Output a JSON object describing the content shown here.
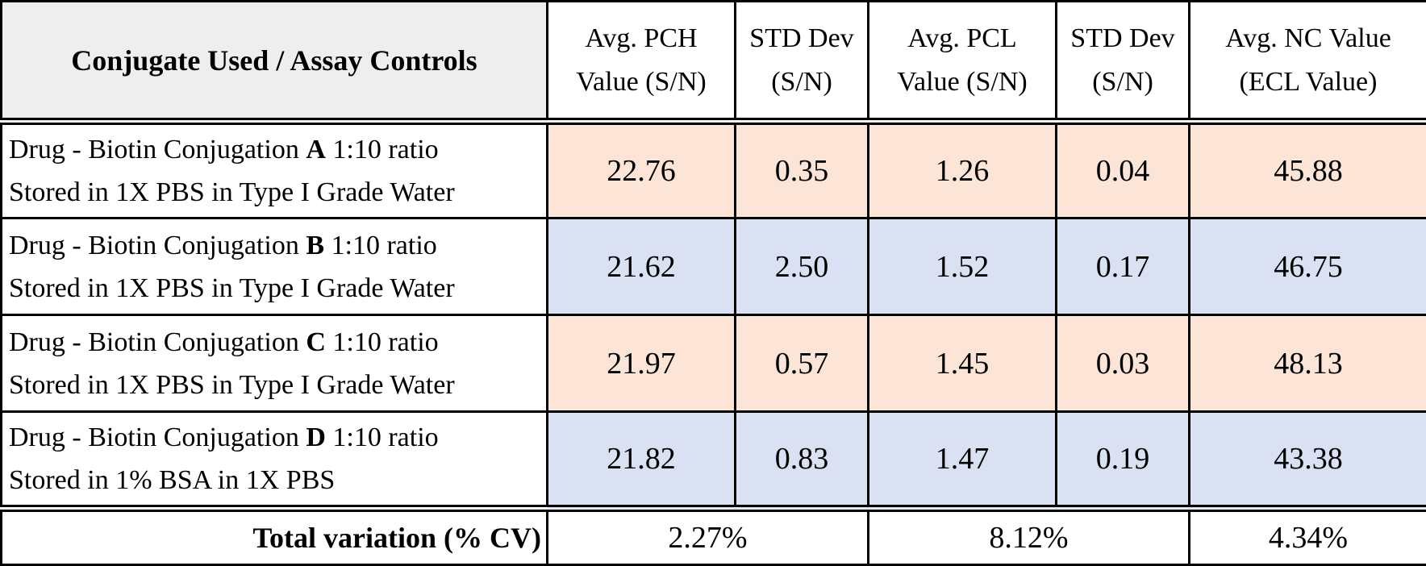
{
  "header": {
    "rowhead": "Conjugate Used / Assay Controls",
    "columns": [
      {
        "line1": "Avg. PCH",
        "line2": "Value (S/N)"
      },
      {
        "line1": "STD Dev",
        "line2": "(S/N)"
      },
      {
        "line1": "Avg. PCL",
        "line2": "Value (S/N)"
      },
      {
        "line1": "STD Dev",
        "line2": "(S/N)"
      },
      {
        "line1": "Avg. NC Value",
        "line2": "(ECL Value)"
      }
    ]
  },
  "rows": [
    {
      "prefix": "Drug - Biotin Conjugation",
      "letter": "A",
      "suffix": "1:10 ratio",
      "line2": "Stored in 1X PBS in Type I Grade Water",
      "values": [
        "22.76",
        "0.35",
        "1.26",
        "0.04",
        "45.88"
      ],
      "shade": "#fce4d6"
    },
    {
      "prefix": "Drug - Biotin Conjugation",
      "letter": "B",
      "suffix": "1:10 ratio",
      "line2": "Stored in 1X PBS in Type I Grade Water",
      "values": [
        "21.62",
        "2.50",
        "1.52",
        "0.17",
        "46.75"
      ],
      "shade": "#dae1f3"
    },
    {
      "prefix": "Drug - Biotin Conjugation",
      "letter": "C",
      "suffix": "1:10 ratio",
      "line2": "Stored in 1X PBS in Type I Grade Water",
      "values": [
        "21.97",
        "0.57",
        "1.45",
        "0.03",
        "48.13"
      ],
      "shade": "#fce4d6"
    },
    {
      "prefix": "Drug - Biotin Conjugation",
      "letter": "D",
      "suffix": "1:10 ratio",
      "line2": "Stored in 1% BSA in 1X PBS",
      "values": [
        "21.82",
        "0.83",
        "1.47",
        "0.19",
        "43.38"
      ],
      "shade": "#dae1f3"
    }
  ],
  "footer": {
    "label": "Total variation (% CV)",
    "pch_cv": "2.27%",
    "pcl_cv": "8.12%",
    "nc_cv": "4.34%"
  }
}
